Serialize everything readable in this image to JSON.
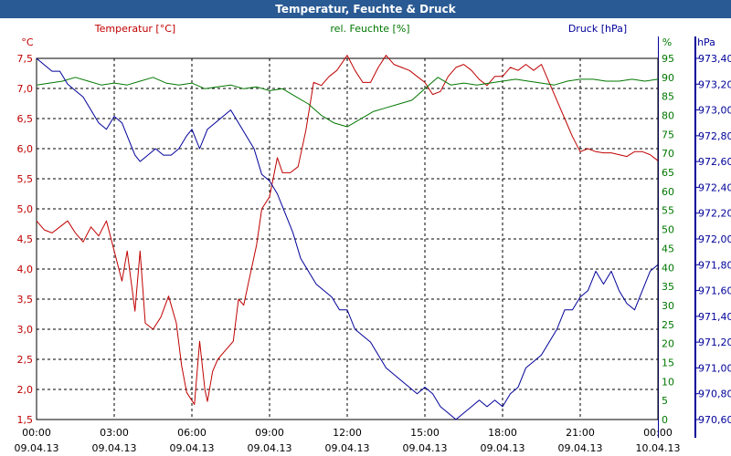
{
  "chart_data": {
    "type": "line",
    "title": "Temperatur, Feuchte & Druck",
    "colors": {
      "temperature": "#c00000",
      "humidity": "#007700",
      "pressure": "#000099",
      "grid": "#000000"
    },
    "axes": {
      "left": {
        "unit": "°C",
        "label": "Temperatur [°C]",
        "ylim": [
          1.5,
          7.5
        ],
        "ticks": [
          "1,5",
          "2,0",
          "2,5",
          "3,0",
          "3,5",
          "4,0",
          "4,5",
          "5,0",
          "5,5",
          "6,0",
          "6,5",
          "7,0",
          "7,5"
        ]
      },
      "right1": {
        "unit": "%",
        "label": "rel. Feuchte [%]",
        "ylim": [
          0,
          95
        ],
        "ticks": [
          "0",
          "5",
          "10",
          "15",
          "20",
          "25",
          "30",
          "35",
          "40",
          "45",
          "50",
          "55",
          "60",
          "65",
          "70",
          "75",
          "80",
          "85",
          "90",
          "95"
        ]
      },
      "right2": {
        "unit": "hPa",
        "label": "Druck [hPa]",
        "ylim": [
          970.6,
          973.4
        ],
        "ticks": [
          "970,60",
          "970,80",
          "971,00",
          "971,20",
          "971,40",
          "971,60",
          "971,80",
          "972,00",
          "972,20",
          "972,40",
          "972,60",
          "972,80",
          "973,00",
          "973,20",
          "973,40"
        ]
      }
    },
    "x_hours": [
      0,
      24
    ],
    "x_ticks": [
      {
        "time": "00:00",
        "date": "09.04.13"
      },
      {
        "time": "03:00",
        "date": "09.04.13"
      },
      {
        "time": "06:00",
        "date": "09.04.13"
      },
      {
        "time": "09:00",
        "date": "09.04.13"
      },
      {
        "time": "12:00",
        "date": "09.04.13"
      },
      {
        "time": "15:00",
        "date": "09.04.13"
      },
      {
        "time": "18:00",
        "date": "09.04.13"
      },
      {
        "time": "21:00",
        "date": "09.04.13"
      },
      {
        "time": "00:00",
        "date": "10.04.13"
      }
    ],
    "series": [
      {
        "name": "Temperatur [°C]",
        "axis": "left",
        "color": "#c00000",
        "points": [
          [
            0,
            4.8
          ],
          [
            0.3,
            4.65
          ],
          [
            0.6,
            4.6
          ],
          [
            0.9,
            4.7
          ],
          [
            1.2,
            4.8
          ],
          [
            1.5,
            4.6
          ],
          [
            1.8,
            4.45
          ],
          [
            2.1,
            4.7
          ],
          [
            2.4,
            4.55
          ],
          [
            2.7,
            4.8
          ],
          [
            3.0,
            4.3
          ],
          [
            3.3,
            3.8
          ],
          [
            3.5,
            4.3
          ],
          [
            3.8,
            3.3
          ],
          [
            4.0,
            4.3
          ],
          [
            4.2,
            3.1
          ],
          [
            4.5,
            3.0
          ],
          [
            4.8,
            3.2
          ],
          [
            5.1,
            3.55
          ],
          [
            5.4,
            3.1
          ],
          [
            5.6,
            2.4
          ],
          [
            5.8,
            1.95
          ],
          [
            6.1,
            1.75
          ],
          [
            6.3,
            2.8
          ],
          [
            6.5,
            2.0
          ],
          [
            6.6,
            1.8
          ],
          [
            6.8,
            2.3
          ],
          [
            7.0,
            2.5
          ],
          [
            7.3,
            2.65
          ],
          [
            7.6,
            2.8
          ],
          [
            7.8,
            3.5
          ],
          [
            8.0,
            3.4
          ],
          [
            8.2,
            3.8
          ],
          [
            8.5,
            4.4
          ],
          [
            8.7,
            5.0
          ],
          [
            9.0,
            5.2
          ],
          [
            9.3,
            5.85
          ],
          [
            9.5,
            5.6
          ],
          [
            9.8,
            5.6
          ],
          [
            10.1,
            5.7
          ],
          [
            10.4,
            6.3
          ],
          [
            10.7,
            7.1
          ],
          [
            11.0,
            7.05
          ],
          [
            11.3,
            7.2
          ],
          [
            11.6,
            7.3
          ],
          [
            12.0,
            7.55
          ],
          [
            12.3,
            7.3
          ],
          [
            12.6,
            7.1
          ],
          [
            12.9,
            7.1
          ],
          [
            13.2,
            7.35
          ],
          [
            13.5,
            7.55
          ],
          [
            13.8,
            7.4
          ],
          [
            14.1,
            7.35
          ],
          [
            14.4,
            7.3
          ],
          [
            14.7,
            7.2
          ],
          [
            15.0,
            7.1
          ],
          [
            15.3,
            6.9
          ],
          [
            15.6,
            6.95
          ],
          [
            15.9,
            7.2
          ],
          [
            16.2,
            7.35
          ],
          [
            16.5,
            7.4
          ],
          [
            16.8,
            7.3
          ],
          [
            17.1,
            7.15
          ],
          [
            17.4,
            7.05
          ],
          [
            17.7,
            7.2
          ],
          [
            18.0,
            7.2
          ],
          [
            18.3,
            7.35
          ],
          [
            18.6,
            7.3
          ],
          [
            18.9,
            7.4
          ],
          [
            19.2,
            7.3
          ],
          [
            19.5,
            7.4
          ],
          [
            19.8,
            7.1
          ],
          [
            20.1,
            6.8
          ],
          [
            20.4,
            6.5
          ],
          [
            20.7,
            6.2
          ],
          [
            21.0,
            5.95
          ],
          [
            21.3,
            6.0
          ],
          [
            21.6,
            5.95
          ],
          [
            21.9,
            5.93
          ],
          [
            22.2,
            5.93
          ],
          [
            22.5,
            5.9
          ],
          [
            22.8,
            5.87
          ],
          [
            23.1,
            5.95
          ],
          [
            23.4,
            5.95
          ],
          [
            23.7,
            5.9
          ],
          [
            24.0,
            5.8
          ]
        ]
      },
      {
        "name": "rel. Feuchte [%]",
        "axis": "right1",
        "color": "#007700",
        "points": [
          [
            0,
            88
          ],
          [
            0.5,
            88.5
          ],
          [
            1.0,
            89
          ],
          [
            1.5,
            90
          ],
          [
            2.0,
            89
          ],
          [
            2.5,
            88
          ],
          [
            3.0,
            88.5
          ],
          [
            3.5,
            88
          ],
          [
            4.0,
            89
          ],
          [
            4.5,
            90
          ],
          [
            5.0,
            88.5
          ],
          [
            5.5,
            88
          ],
          [
            6.0,
            88.5
          ],
          [
            6.5,
            87
          ],
          [
            7.0,
            87.5
          ],
          [
            7.5,
            88
          ],
          [
            8.0,
            87
          ],
          [
            8.5,
            87.5
          ],
          [
            9.0,
            86.5
          ],
          [
            9.5,
            87
          ],
          [
            10.0,
            85
          ],
          [
            10.5,
            83
          ],
          [
            11.0,
            80
          ],
          [
            11.5,
            78
          ],
          [
            12.0,
            77
          ],
          [
            12.5,
            79
          ],
          [
            13.0,
            81
          ],
          [
            13.5,
            82
          ],
          [
            14.0,
            83
          ],
          [
            14.5,
            84
          ],
          [
            15.0,
            87
          ],
          [
            15.5,
            90
          ],
          [
            16.0,
            88
          ],
          [
            16.5,
            88.5
          ],
          [
            17.0,
            88
          ],
          [
            17.5,
            88.5
          ],
          [
            18.0,
            89
          ],
          [
            18.5,
            89.5
          ],
          [
            19.0,
            89
          ],
          [
            19.5,
            88.5
          ],
          [
            20.0,
            88
          ],
          [
            20.5,
            89
          ],
          [
            21.0,
            89.5
          ],
          [
            21.5,
            89.5
          ],
          [
            22.0,
            89
          ],
          [
            22.5,
            89
          ],
          [
            23.0,
            89.5
          ],
          [
            23.5,
            89
          ],
          [
            24.0,
            89.5
          ]
        ]
      },
      {
        "name": "Druck [hPa]",
        "axis": "right2",
        "color": "#000099",
        "points": [
          [
            0,
            973.4
          ],
          [
            0.3,
            973.35
          ],
          [
            0.6,
            973.3
          ],
          [
            0.9,
            973.3
          ],
          [
            1.2,
            973.2
          ],
          [
            1.5,
            973.15
          ],
          [
            1.8,
            973.1
          ],
          [
            2.1,
            973.0
          ],
          [
            2.4,
            972.9
          ],
          [
            2.7,
            972.85
          ],
          [
            3.0,
            972.95
          ],
          [
            3.3,
            972.9
          ],
          [
            3.5,
            972.8
          ],
          [
            3.8,
            972.65
          ],
          [
            4.0,
            972.6
          ],
          [
            4.3,
            972.65
          ],
          [
            4.6,
            972.7
          ],
          [
            4.9,
            972.65
          ],
          [
            5.2,
            972.65
          ],
          [
            5.5,
            972.7
          ],
          [
            5.8,
            972.8
          ],
          [
            6.0,
            972.85
          ],
          [
            6.3,
            972.7
          ],
          [
            6.6,
            972.85
          ],
          [
            6.9,
            972.9
          ],
          [
            7.2,
            972.95
          ],
          [
            7.5,
            973.0
          ],
          [
            7.8,
            972.9
          ],
          [
            8.1,
            972.8
          ],
          [
            8.4,
            972.7
          ],
          [
            8.7,
            972.5
          ],
          [
            9.0,
            972.45
          ],
          [
            9.3,
            972.35
          ],
          [
            9.6,
            972.2
          ],
          [
            9.9,
            972.05
          ],
          [
            10.2,
            971.85
          ],
          [
            10.5,
            971.75
          ],
          [
            10.8,
            971.65
          ],
          [
            11.1,
            971.6
          ],
          [
            11.4,
            971.55
          ],
          [
            11.7,
            971.45
          ],
          [
            12.0,
            971.45
          ],
          [
            12.3,
            971.3
          ],
          [
            12.6,
            971.25
          ],
          [
            12.9,
            971.2
          ],
          [
            13.2,
            971.1
          ],
          [
            13.5,
            971.0
          ],
          [
            13.8,
            970.95
          ],
          [
            14.1,
            970.9
          ],
          [
            14.4,
            970.85
          ],
          [
            14.7,
            970.8
          ],
          [
            15.0,
            970.85
          ],
          [
            15.3,
            970.8
          ],
          [
            15.6,
            970.7
          ],
          [
            15.9,
            970.65
          ],
          [
            16.2,
            970.6
          ],
          [
            16.5,
            970.65
          ],
          [
            16.8,
            970.7
          ],
          [
            17.1,
            970.75
          ],
          [
            17.4,
            970.7
          ],
          [
            17.7,
            970.75
          ],
          [
            18.0,
            970.7
          ],
          [
            18.3,
            970.8
          ],
          [
            18.6,
            970.85
          ],
          [
            18.9,
            971.0
          ],
          [
            19.2,
            971.05
          ],
          [
            19.5,
            971.1
          ],
          [
            19.8,
            971.2
          ],
          [
            20.1,
            971.3
          ],
          [
            20.4,
            971.45
          ],
          [
            20.7,
            971.45
          ],
          [
            21.0,
            971.55
          ],
          [
            21.3,
            971.6
          ],
          [
            21.6,
            971.75
          ],
          [
            21.9,
            971.65
          ],
          [
            22.2,
            971.75
          ],
          [
            22.5,
            971.6
          ],
          [
            22.8,
            971.5
          ],
          [
            23.1,
            971.45
          ],
          [
            23.4,
            971.6
          ],
          [
            23.7,
            971.75
          ],
          [
            24.0,
            971.8
          ]
        ]
      }
    ]
  }
}
